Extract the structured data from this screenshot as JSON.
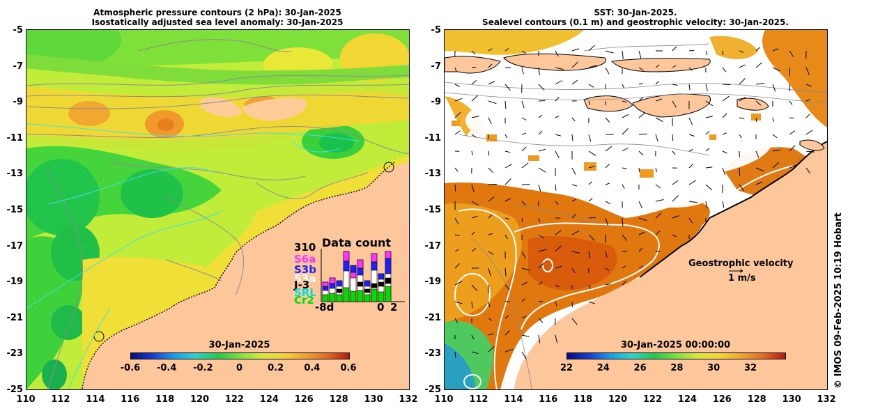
{
  "left_panel": {
    "title_line1": "Atmospheric pressure contours (2 hPa): 30-Jan-2025",
    "title_line2": "Isostatically adjusted sea level anomaly: 30-Jan-2025",
    "colorbar_title": "30-Jan-2025",
    "colorbar_ticks": [
      "-0.6",
      "-0.4",
      "-0.2",
      "0",
      "0.2",
      "0.4",
      "0.6"
    ],
    "inset": {
      "max_label": "310",
      "title": "Data count",
      "missions": [
        "S6a",
        "S3b",
        "S3a",
        "J-3",
        "SRL",
        "Cr2"
      ],
      "mission_colors": [
        "#ff33ff",
        "#1f1fff",
        "#ffffff",
        "#000000",
        "#00e0e0",
        "#00dd00"
      ],
      "x_left": "-8d",
      "x_mid": "0",
      "x_right": "2"
    }
  },
  "right_panel": {
    "title_line1": "SST: 30-Jan-2025.",
    "title_line2": "Sealevel contours (0.1 m) and geostrophic velocity: 30-Jan-2025.",
    "colorbar_title": "30-Jan-2025 00:00:00",
    "colorbar_ticks": [
      "22",
      "24",
      "26",
      "28",
      "30",
      "32"
    ],
    "velocity_label": "Geostrophic velocity",
    "velocity_scale": "1 m/s"
  },
  "axes": {
    "y_ticks": [
      "-5",
      "-7",
      "-9",
      "-11",
      "-13",
      "-15",
      "-17",
      "-19",
      "-21",
      "-23",
      "-25"
    ],
    "x_ticks": [
      "110",
      "112",
      "114",
      "116",
      "118",
      "120",
      "122",
      "124",
      "126",
      "128",
      "130",
      "132"
    ]
  },
  "credit": "© IMOS 09-Feb-2025 10:19 Hobart"
}
